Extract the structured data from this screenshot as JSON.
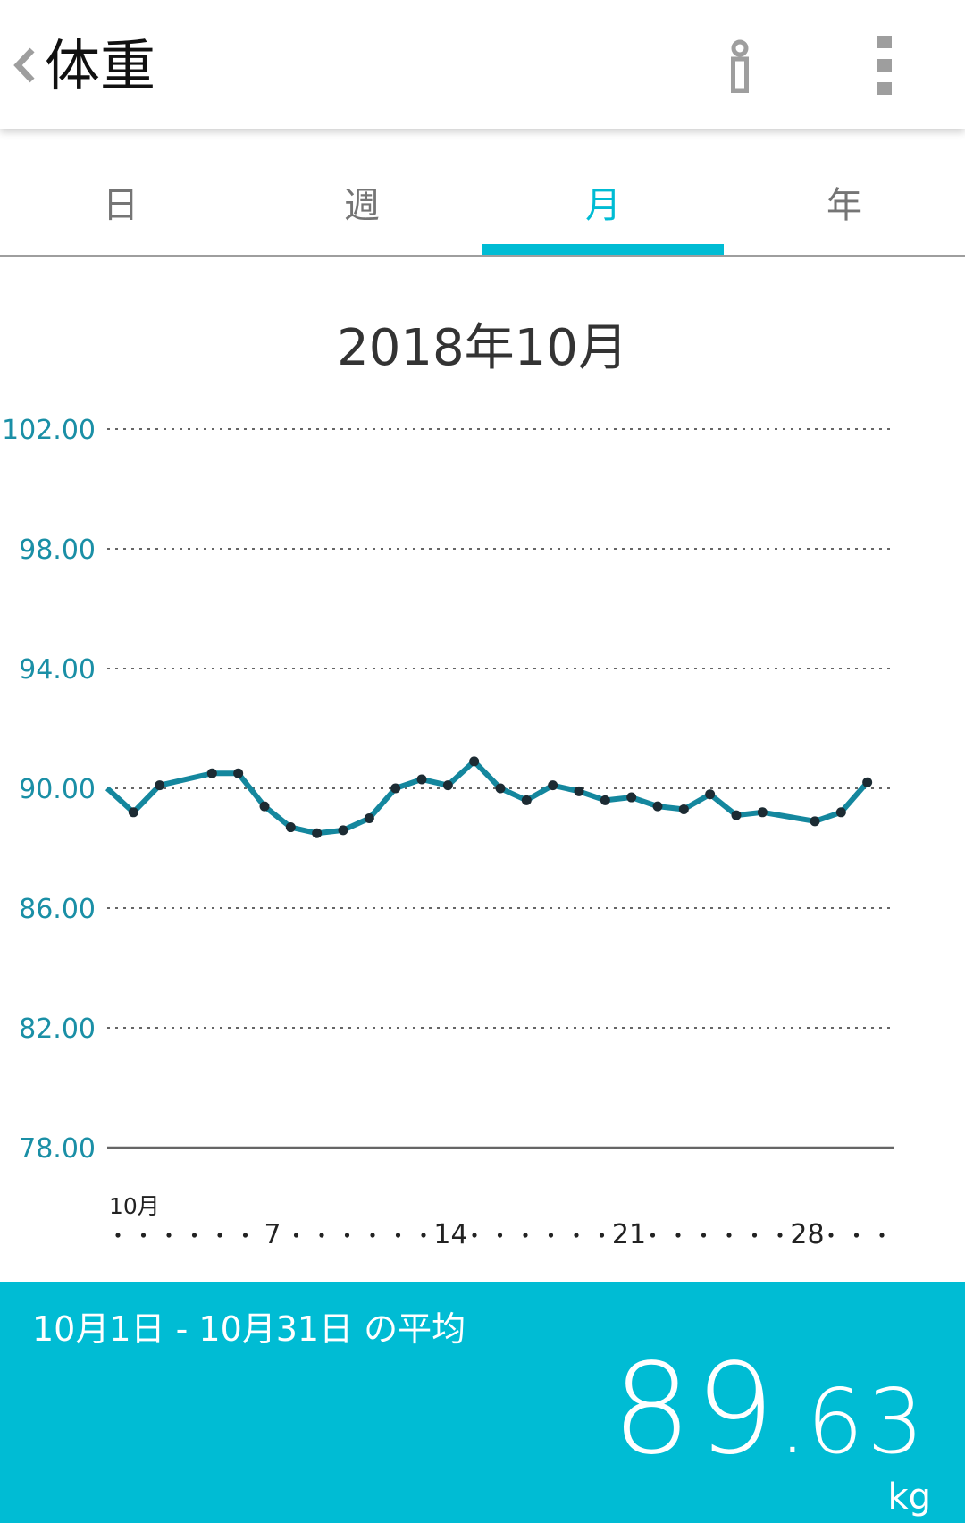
{
  "header": {
    "title": "体重",
    "back_icon": "chevron-left-icon",
    "info_icon": "info-icon",
    "more_icon": "more-vert-icon"
  },
  "tabs": [
    {
      "label": "日",
      "active": false
    },
    {
      "label": "週",
      "active": false
    },
    {
      "label": "月",
      "active": true
    },
    {
      "label": "年",
      "active": false
    }
  ],
  "period_title": "2018年10月",
  "colors": {
    "accent": "#00bcd4",
    "line": "#14879e",
    "axis_label": "#1a8fa6",
    "point": "#1c2b33"
  },
  "chart_data": {
    "type": "line",
    "title": "2018年10月",
    "ylim": [
      78,
      102
    ],
    "y_ticks": [
      "102.00",
      "98.00",
      "94.00",
      "90.00",
      "86.00",
      "82.00",
      "78.00"
    ],
    "y_tick_values": [
      102,
      98,
      94,
      90,
      86,
      82,
      78
    ],
    "x_range": [
      1,
      31
    ],
    "x_month_label": "10月",
    "x_tick_labels": [
      {
        "day": 7,
        "label": "7"
      },
      {
        "day": 14,
        "label": "14"
      },
      {
        "day": 21,
        "label": "21"
      },
      {
        "day": 28,
        "label": "28"
      }
    ],
    "grid": "dotted",
    "series": [
      {
        "x": [
          2,
          3,
          5,
          6,
          7,
          8,
          9,
          10,
          11,
          12,
          13,
          14,
          15,
          16,
          17,
          18,
          19,
          20,
          21,
          22,
          23,
          24,
          25,
          26,
          28,
          29,
          30
        ],
        "values": [
          89.2,
          90.1,
          90.5,
          90.5,
          89.4,
          88.7,
          88.5,
          88.6,
          89.0,
          90.0,
          90.3,
          90.1,
          90.9,
          90.0,
          89.6,
          90.1,
          89.9,
          89.6,
          89.7,
          89.4,
          89.3,
          89.8,
          89.1,
          89.2,
          88.9,
          89.2,
          90.2
        ]
      }
    ]
  },
  "summary": {
    "label": "10月1日 - 10月31日 の平均",
    "value_int": "89",
    "value_sep": ".",
    "value_dec": "63",
    "unit": "kg"
  }
}
